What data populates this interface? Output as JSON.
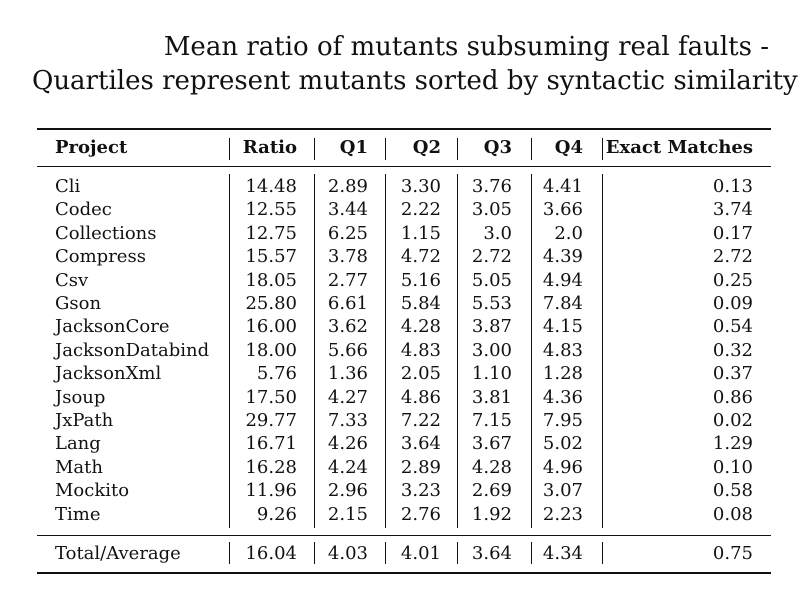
{
  "title": {
    "line1": "Mean ratio of mutants subsuming real faults -",
    "line2": "Quartiles represent mutants sorted by syntactic similarity"
  },
  "table": {
    "headers": [
      "Project",
      "Ratio",
      "Q1",
      "Q2",
      "Q3",
      "Q4",
      "Exact Matches"
    ],
    "rows": [
      [
        "Cli",
        "14.48",
        "2.89",
        "3.30",
        "3.76",
        "4.41",
        "0.13"
      ],
      [
        "Codec",
        "12.55",
        "3.44",
        "2.22",
        "3.05",
        "3.66",
        "3.74"
      ],
      [
        "Collections",
        "12.75",
        "6.25",
        "1.15",
        "3.0",
        "2.0",
        "0.17"
      ],
      [
        "Compress",
        "15.57",
        "3.78",
        "4.72",
        "2.72",
        "4.39",
        "2.72"
      ],
      [
        "Csv",
        "18.05",
        "2.77",
        "5.16",
        "5.05",
        "4.94",
        "0.25"
      ],
      [
        "Gson",
        "25.80",
        "6.61",
        "5.84",
        "5.53",
        "7.84",
        "0.09"
      ],
      [
        "JacksonCore",
        "16.00",
        "3.62",
        "4.28",
        "3.87",
        "4.15",
        "0.54"
      ],
      [
        "JacksonDatabind",
        "18.00",
        "5.66",
        "4.83",
        "3.00",
        "4.83",
        "0.32"
      ],
      [
        "JacksonXml",
        "5.76",
        "1.36",
        "2.05",
        "1.10",
        "1.28",
        "0.37"
      ],
      [
        "Jsoup",
        "17.50",
        "4.27",
        "4.86",
        "3.81",
        "4.36",
        "0.86"
      ],
      [
        "JxPath",
        "29.77",
        "7.33",
        "7.22",
        "7.15",
        "7.95",
        "0.02"
      ],
      [
        "Lang",
        "16.71",
        "4.26",
        "3.64",
        "3.67",
        "5.02",
        "1.29"
      ],
      [
        "Math",
        "16.28",
        "4.24",
        "2.89",
        "4.28",
        "4.96",
        "0.10"
      ],
      [
        "Mockito",
        "11.96",
        "2.96",
        "3.23",
        "2.69",
        "3.07",
        "0.58"
      ],
      [
        "Time",
        "9.26",
        "2.15",
        "2.76",
        "1.92",
        "2.23",
        "0.08"
      ]
    ],
    "total": [
      "Total/Average",
      "16.04",
      "4.03",
      "4.01",
      "3.64",
      "4.34",
      "0.75"
    ]
  }
}
